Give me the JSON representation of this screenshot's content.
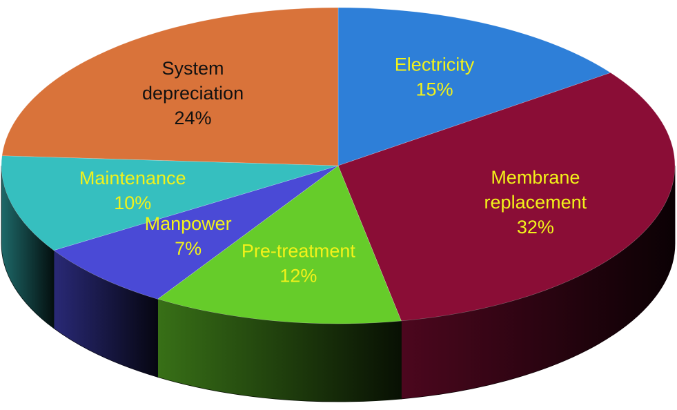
{
  "chart_data": {
    "type": "pie",
    "title": "",
    "three_d": true,
    "start": "top-center",
    "direction": "clockwise",
    "slices": [
      {
        "name": "Electricity",
        "label": [
          "Electricity"
        ],
        "value": 15,
        "value_label": "15%",
        "color": "#2e7fd8",
        "label_color": "#f2f21a"
      },
      {
        "name": "Membrane replacement",
        "label": [
          "Membrane",
          "replacement"
        ],
        "value": 32,
        "value_label": "32%",
        "color": "#8a0d36",
        "label_color": "#f2f21a"
      },
      {
        "name": "Pre-treatment",
        "label": [
          "Pre-treatment"
        ],
        "value": 12,
        "value_label": "12%",
        "color": "#66cc2a",
        "label_color": "#f2f21a"
      },
      {
        "name": "Manpower",
        "label": [
          "Manpower"
        ],
        "value": 7,
        "value_label": "7%",
        "color": "#4a4ad6",
        "label_color": "#f2f21a"
      },
      {
        "name": "Maintenance",
        "label": [
          "Maintenance"
        ],
        "value": 10,
        "value_label": "10%",
        "color": "#36bfbf",
        "label_color": "#f2f21a"
      },
      {
        "name": "System depreciation",
        "label": [
          "System",
          "depreciation"
        ],
        "value": 24,
        "value_label": "24%",
        "color": "#d9733a",
        "label_color": "#111111"
      }
    ]
  }
}
